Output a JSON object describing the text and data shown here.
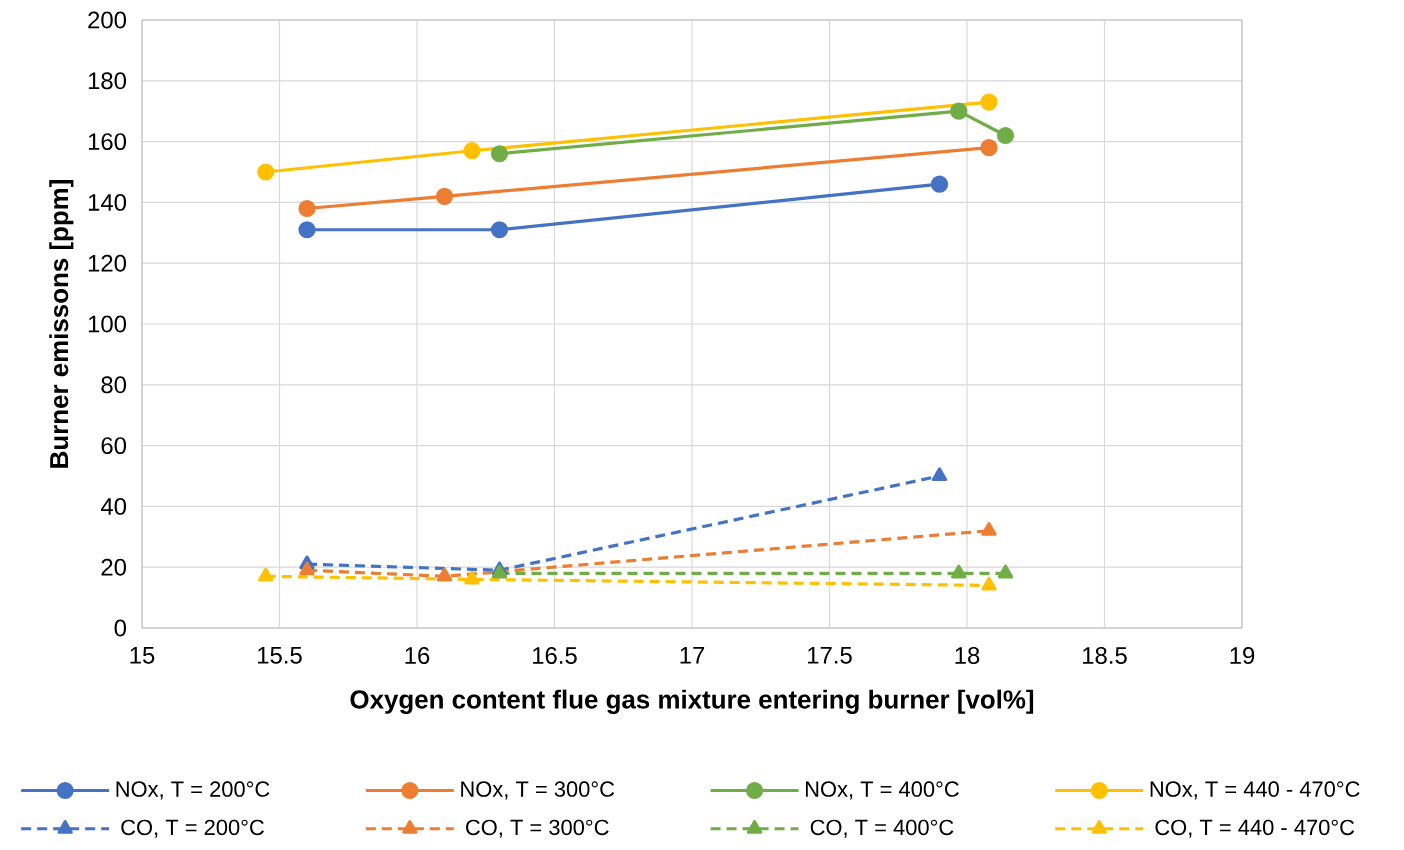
{
  "chart_data": {
    "type": "line",
    "xlabel": "Oxygen content flue gas mixture entering burner [vol%]",
    "ylabel": "Burner emissons [ppm]",
    "xlim": [
      15,
      19
    ],
    "xticks": [
      15,
      15.5,
      16,
      16.5,
      17,
      17.5,
      18,
      18.5,
      19
    ],
    "ylim": [
      0,
      200
    ],
    "yticks": [
      0,
      20,
      40,
      60,
      80,
      100,
      120,
      140,
      160,
      180,
      200
    ],
    "grid": true,
    "legend": "bottom",
    "series": [
      {
        "name": "NOx, T = 200°C",
        "color": "#4472c4",
        "marker": "circle",
        "line_style": "solid",
        "x": [
          15.6,
          16.3,
          17.9
        ],
        "values": [
          131,
          131,
          146
        ]
      },
      {
        "name": "NOx, T = 300°C",
        "color": "#ed7d31",
        "marker": "circle",
        "line_style": "solid",
        "x": [
          15.6,
          16.1,
          18.08
        ],
        "values": [
          138,
          142,
          158
        ]
      },
      {
        "name": "NOx, T = 400°C",
        "color": "#70ad47",
        "marker": "circle",
        "line_style": "solid",
        "x": [
          16.3,
          17.97,
          18.14
        ],
        "values": [
          156,
          170,
          162
        ]
      },
      {
        "name": "NOx, T = 440 - 470°C",
        "color": "#ffc000",
        "marker": "circle",
        "line_style": "solid",
        "x": [
          15.45,
          16.2,
          18.08
        ],
        "values": [
          150,
          157,
          173
        ]
      },
      {
        "name": "CO, T = 200°C",
        "color": "#4472c4",
        "marker": "triangle",
        "line_style": "dashed",
        "x": [
          15.6,
          16.3,
          17.9
        ],
        "values": [
          21,
          19,
          50
        ]
      },
      {
        "name": "CO, T = 300°C",
        "color": "#ed7d31",
        "marker": "triangle",
        "line_style": "dashed",
        "x": [
          15.6,
          16.1,
          18.08
        ],
        "values": [
          19,
          17,
          32
        ]
      },
      {
        "name": "CO, T = 400°C",
        "color": "#70ad47",
        "marker": "triangle",
        "line_style": "dashed",
        "x": [
          16.3,
          17.97,
          18.14
        ],
        "values": [
          18,
          18,
          18
        ]
      },
      {
        "name": "CO, T = 440 - 470°C",
        "color": "#ffc000",
        "marker": "triangle",
        "line_style": "dashed",
        "x": [
          15.45,
          16.2,
          18.08
        ],
        "values": [
          17,
          16,
          14
        ]
      }
    ]
  }
}
